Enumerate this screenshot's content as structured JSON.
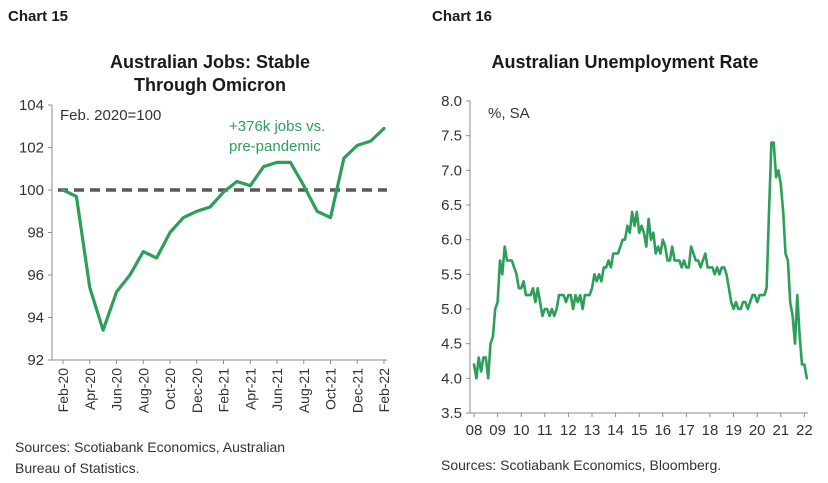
{
  "charts": [
    {
      "label": "Chart 15",
      "title_line1": "Australian Jobs: Stable",
      "title_line2": "Through Omicron",
      "source_line1": "Sources: Scotiabank Economics, Australian",
      "source_line2": "Bureau of Statistics."
    },
    {
      "label": "Chart 16",
      "title_line1": "Australian Unemployment Rate",
      "source_line1": "Sources: Scotiabank Economics, Bloomberg."
    }
  ],
  "chart_data": [
    {
      "type": "line",
      "title": "Australian Jobs: Stable Through Omicron",
      "unit_label": "Feb. 2020=100",
      "annotation": "+376k jobs vs. pre-pandemic",
      "ylim": [
        92,
        104
      ],
      "yticks": [
        "92",
        "94",
        "96",
        "98",
        "100",
        "102",
        "104"
      ],
      "xticks": [
        "Feb-20",
        "Apr-20",
        "Jun-20",
        "Aug-20",
        "Oct-20",
        "Dec-20",
        "Feb-21",
        "Apr-21",
        "Jun-21",
        "Aug-21",
        "Oct-21",
        "Dec-21",
        "Feb-22"
      ],
      "x": [
        "Feb-20",
        "Mar-20",
        "Apr-20",
        "May-20",
        "Jun-20",
        "Jul-20",
        "Aug-20",
        "Sep-20",
        "Oct-20",
        "Nov-20",
        "Dec-20",
        "Jan-21",
        "Feb-21",
        "Mar-21",
        "Apr-21",
        "May-21",
        "Jun-21",
        "Jul-21",
        "Aug-21",
        "Sep-21",
        "Oct-21",
        "Nov-21",
        "Dec-21",
        "Jan-22",
        "Feb-22"
      ],
      "series": [
        {
          "values": [
            100,
            99.7,
            95.4,
            93.4,
            95.2,
            96.0,
            97.1,
            96.8,
            98.0,
            98.7,
            99.0,
            99.2,
            99.9,
            100.4,
            100.2,
            101.1,
            101.3,
            101.3,
            100.2,
            99.0,
            98.7,
            101.5,
            102.1,
            102.3,
            102.9
          ]
        }
      ],
      "reference_line": 100,
      "line_color": "#2e9e5b",
      "reference_color": "#595959"
    },
    {
      "type": "line",
      "title": "Australian Unemployment Rate",
      "unit_label": "%, SA",
      "ylim": [
        3.5,
        8.0
      ],
      "yticks": [
        "3.5",
        "4.0",
        "4.5",
        "5.0",
        "5.5",
        "6.0",
        "6.5",
        "7.0",
        "7.5",
        "8.0"
      ],
      "xticks": [
        "08",
        "09",
        "10",
        "11",
        "12",
        "13",
        "14",
        "15",
        "16",
        "17",
        "18",
        "19",
        "20",
        "21",
        "22"
      ],
      "x": [
        2008.0,
        2008.1,
        2008.2,
        2008.3,
        2008.4,
        2008.5,
        2008.6,
        2008.7,
        2008.8,
        2008.9,
        2009.0,
        2009.1,
        2009.2,
        2009.3,
        2009.4,
        2009.5,
        2009.6,
        2009.7,
        2009.8,
        2009.9,
        2010.0,
        2010.1,
        2010.2,
        2010.3,
        2010.4,
        2010.5,
        2010.6,
        2010.7,
        2010.8,
        2010.9,
        2011.0,
        2011.1,
        2011.2,
        2011.3,
        2011.4,
        2011.5,
        2011.6,
        2011.7,
        2011.8,
        2011.9,
        2012.0,
        2012.1,
        2012.2,
        2012.3,
        2012.4,
        2012.5,
        2012.6,
        2012.7,
        2012.8,
        2012.9,
        2013.0,
        2013.1,
        2013.2,
        2013.3,
        2013.4,
        2013.5,
        2013.6,
        2013.7,
        2013.8,
        2013.9,
        2014.0,
        2014.1,
        2014.2,
        2014.3,
        2014.4,
        2014.5,
        2014.6,
        2014.7,
        2014.8,
        2014.9,
        2015.0,
        2015.1,
        2015.2,
        2015.3,
        2015.4,
        2015.5,
        2015.6,
        2015.7,
        2015.8,
        2015.9,
        2016.0,
        2016.1,
        2016.2,
        2016.3,
        2016.4,
        2016.5,
        2016.6,
        2016.7,
        2016.8,
        2016.9,
        2017.0,
        2017.1,
        2017.2,
        2017.3,
        2017.4,
        2017.5,
        2017.6,
        2017.7,
        2017.8,
        2017.9,
        2018.0,
        2018.1,
        2018.2,
        2018.3,
        2018.4,
        2018.5,
        2018.6,
        2018.7,
        2018.8,
        2018.9,
        2019.0,
        2019.1,
        2019.2,
        2019.3,
        2019.4,
        2019.5,
        2019.6,
        2019.7,
        2019.8,
        2019.9,
        2020.0,
        2020.1,
        2020.2,
        2020.3,
        2020.4,
        2020.5,
        2020.6,
        2020.7,
        2020.8,
        2020.9,
        2021.0,
        2021.1,
        2021.2,
        2021.3,
        2021.4,
        2021.5,
        2021.6,
        2021.7,
        2021.8,
        2021.9,
        2022.0,
        2022.1
      ],
      "series": [
        {
          "values": [
            4.2,
            4.0,
            4.3,
            4.1,
            4.3,
            4.3,
            4.0,
            4.5,
            4.6,
            5.0,
            5.1,
            5.7,
            5.5,
            5.9,
            5.7,
            5.7,
            5.7,
            5.6,
            5.5,
            5.3,
            5.3,
            5.4,
            5.2,
            5.2,
            5.2,
            5.3,
            5.1,
            5.3,
            5.1,
            4.9,
            5.0,
            5.0,
            4.9,
            5.0,
            4.9,
            5.0,
            5.2,
            5.2,
            5.2,
            5.1,
            5.2,
            5.2,
            5.0,
            5.2,
            5.1,
            5.2,
            5.0,
            5.2,
            5.2,
            5.2,
            5.3,
            5.5,
            5.4,
            5.5,
            5.4,
            5.6,
            5.6,
            5.7,
            5.6,
            5.8,
            5.8,
            5.8,
            5.9,
            6.0,
            6.0,
            6.2,
            6.1,
            6.4,
            6.2,
            6.4,
            6.1,
            6.2,
            6.1,
            5.9,
            6.3,
            6.0,
            6.1,
            5.8,
            5.9,
            5.8,
            6.0,
            5.9,
            5.7,
            5.7,
            5.9,
            5.7,
            5.7,
            5.7,
            5.6,
            5.7,
            5.6,
            5.6,
            5.9,
            5.8,
            5.7,
            5.7,
            5.6,
            5.7,
            5.8,
            5.6,
            5.6,
            5.6,
            5.5,
            5.6,
            5.5,
            5.6,
            5.6,
            5.5,
            5.3,
            5.1,
            5.0,
            5.1,
            5.0,
            5.0,
            5.1,
            5.1,
            5.0,
            5.1,
            5.2,
            5.2,
            5.1,
            5.2,
            5.2,
            5.2,
            5.3,
            6.4,
            7.4,
            7.4,
            6.9,
            7.0,
            6.8,
            6.4,
            5.8,
            5.7,
            5.1,
            4.9,
            4.5,
            5.2,
            4.6,
            4.2,
            4.2,
            4.0
          ]
        }
      ],
      "line_color": "#2e9e5b"
    }
  ]
}
